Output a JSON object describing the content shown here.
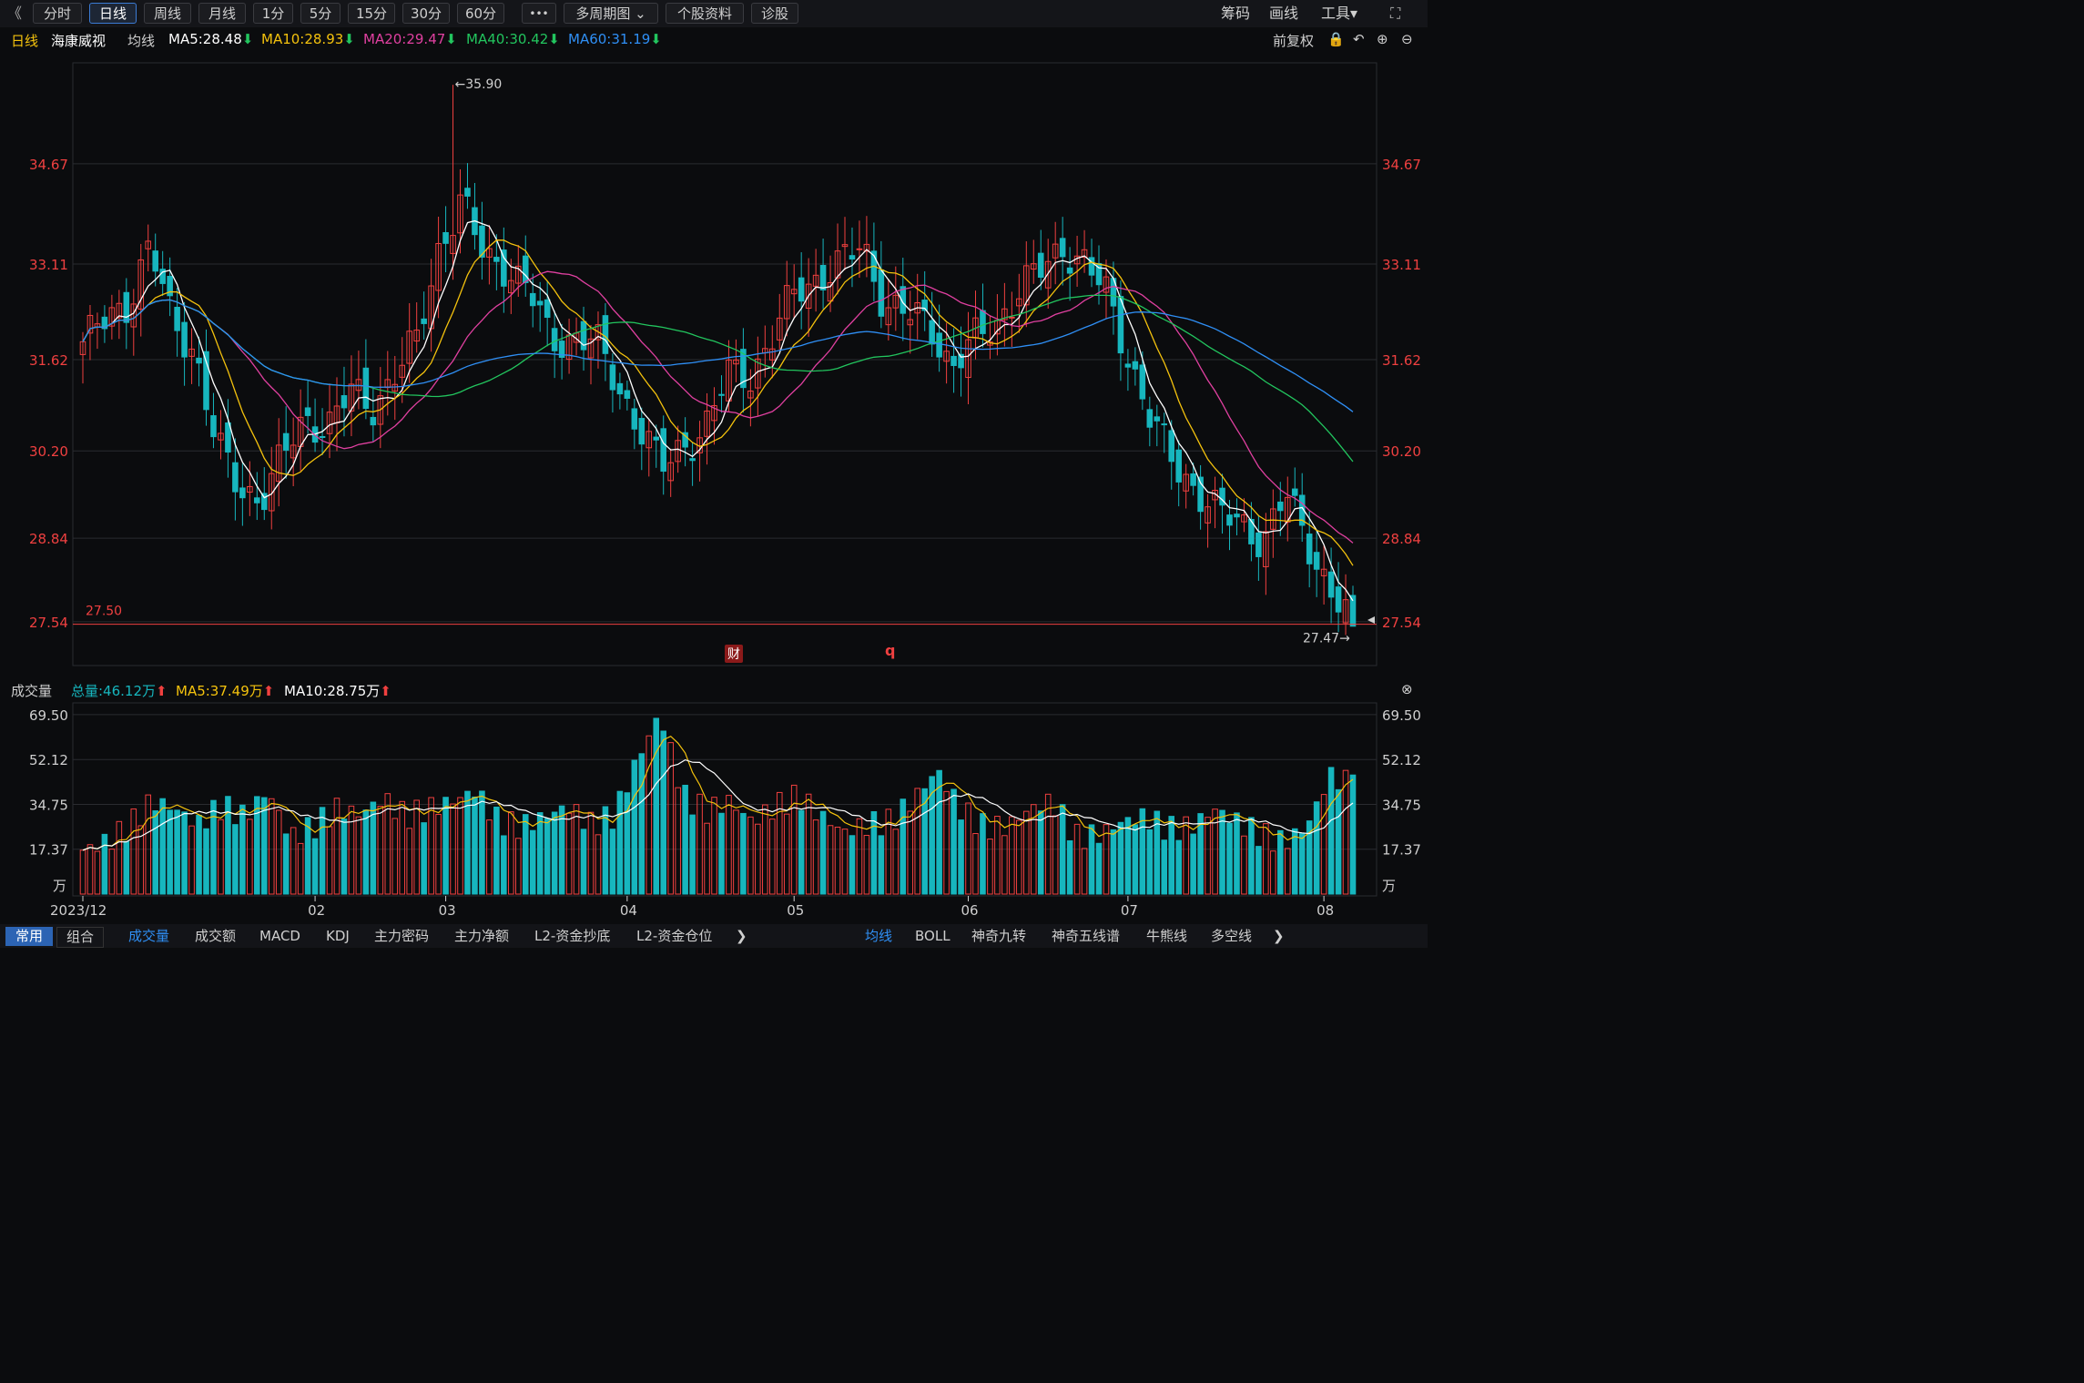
{
  "toolbar": {
    "back_glyph": "《",
    "periods": [
      "分时",
      "日线",
      "周线",
      "月线",
      "1分",
      "5分",
      "15分",
      "30分",
      "60分"
    ],
    "active_period": "日线",
    "more": "•••",
    "multi": "多周期图",
    "profile": "个股资料",
    "diag": "诊股",
    "right": {
      "chips": "筹码",
      "draw": "画线",
      "tools": "工具"
    }
  },
  "info": {
    "period": "日线",
    "stock": "海康威视",
    "ma_label": "均线",
    "ma_items": [
      {
        "text": "MA5:28.48",
        "color": "#ffffff",
        "arrow": "down"
      },
      {
        "text": "MA10:28.93",
        "color": "#f4c20d",
        "arrow": "down"
      },
      {
        "text": "MA20:29.47",
        "color": "#e040a0",
        "arrow": "down"
      },
      {
        "text": "MA40:30.42",
        "color": "#22c55e",
        "arrow": "down"
      },
      {
        "text": "MA60:31.19",
        "color": "#2f8ff5",
        "arrow": "down"
      }
    ],
    "adjust": "前复权"
  },
  "vol_info": {
    "label": "成交量",
    "total": "总量:46.12万",
    "ma5": "MA5:37.49万",
    "ma10": "MA10:28.75万"
  },
  "markers": {
    "cai": "财",
    "q": "q"
  },
  "bottom": {
    "left": [
      "常用",
      "组合"
    ],
    "indicators": [
      "成交量",
      "成交额",
      "MACD",
      "KDJ",
      "主力密码",
      "主力净额",
      "L2-资金抄底",
      "L2-资金仓位"
    ],
    "overlays": [
      "均线",
      "BOLL",
      "神奇九转",
      "神奇五线谱",
      "牛熊线",
      "多空线"
    ]
  },
  "colors": {
    "up": "#f0403f",
    "down": "#17b6be",
    "bg": "#0b0c0e",
    "grid": "#2a2b30",
    "axis_red": "#ef4040"
  },
  "chart_data": [
    {
      "type": "candlestick",
      "title": "海康威视",
      "y_ticks": [
        34.67,
        33.11,
        31.62,
        30.2,
        28.84,
        27.54
      ],
      "ylim": [
        26.9,
        36.2
      ],
      "x_ticks": [
        {
          "label": "2023/12",
          "i": 0
        },
        {
          "label": "02",
          "i": 32
        },
        {
          "label": "03",
          "i": 50
        },
        {
          "label": "04",
          "i": 75
        },
        {
          "label": "05",
          "i": 98
        },
        {
          "label": "06",
          "i": 122
        },
        {
          "label": "07",
          "i": 144
        },
        {
          "label": "08",
          "i": 171
        }
      ],
      "annotations": {
        "high": "←35.90",
        "high_value": 35.9,
        "high_index": 51,
        "low": "27.47→",
        "low_value": 27.47,
        "level_line": "27.50",
        "level_value": 27.5
      },
      "key_closes": [
        31.9,
        32.2,
        32.5,
        33.4,
        32.2,
        31.8,
        30.3,
        29.6,
        29.5,
        30.1,
        30.7,
        30.6,
        31.1,
        30.9,
        31.4,
        31.9,
        33.4,
        34.1,
        33.2,
        33.1,
        32.7,
        31.9,
        32.0,
        31.9,
        31.2,
        30.6,
        29.9,
        30.3,
        30.6,
        31.4,
        31.4,
        32.0,
        32.7,
        32.9,
        33.1,
        33.4,
        32.5,
        32.3,
        32.2,
        31.5,
        31.9,
        32.2,
        32.7,
        33.0,
        33.4,
        33.1,
        32.6,
        31.6,
        30.6,
        30.0,
        29.6,
        29.2,
        29.1,
        28.8,
        29.5,
        28.8,
        28.0,
        27.47
      ],
      "series": [
        {
          "name": "MA5",
          "color": "#ffffff"
        },
        {
          "name": "MA10",
          "color": "#f4c20d"
        },
        {
          "name": "MA20",
          "color": "#e040a0"
        },
        {
          "name": "MA40",
          "color": "#22c55e"
        },
        {
          "name": "MA60",
          "color": "#2f8ff5"
        }
      ]
    },
    {
      "type": "bar",
      "title": "成交量",
      "unit": "万",
      "y_ticks": [
        69.5,
        52.12,
        34.75,
        17.37
      ],
      "ylim": [
        0,
        73
      ],
      "key_volumes": [
        17,
        20,
        26,
        36,
        33,
        27,
        34,
        30,
        40,
        22,
        26,
        33,
        31,
        37,
        30,
        33,
        36,
        40,
        28,
        26,
        30,
        34,
        27,
        30,
        52,
        70,
        38,
        32,
        36,
        28,
        34,
        38,
        30,
        24,
        27,
        28,
        37,
        48,
        33,
        26,
        26,
        33,
        36,
        22,
        23,
        28,
        30,
        25,
        26,
        33,
        28,
        23,
        20,
        26,
        46,
        42
      ],
      "series": [
        {
          "name": "MA5",
          "color": "#f4c20d"
        },
        {
          "name": "MA10",
          "color": "#ffffff"
        }
      ]
    }
  ]
}
